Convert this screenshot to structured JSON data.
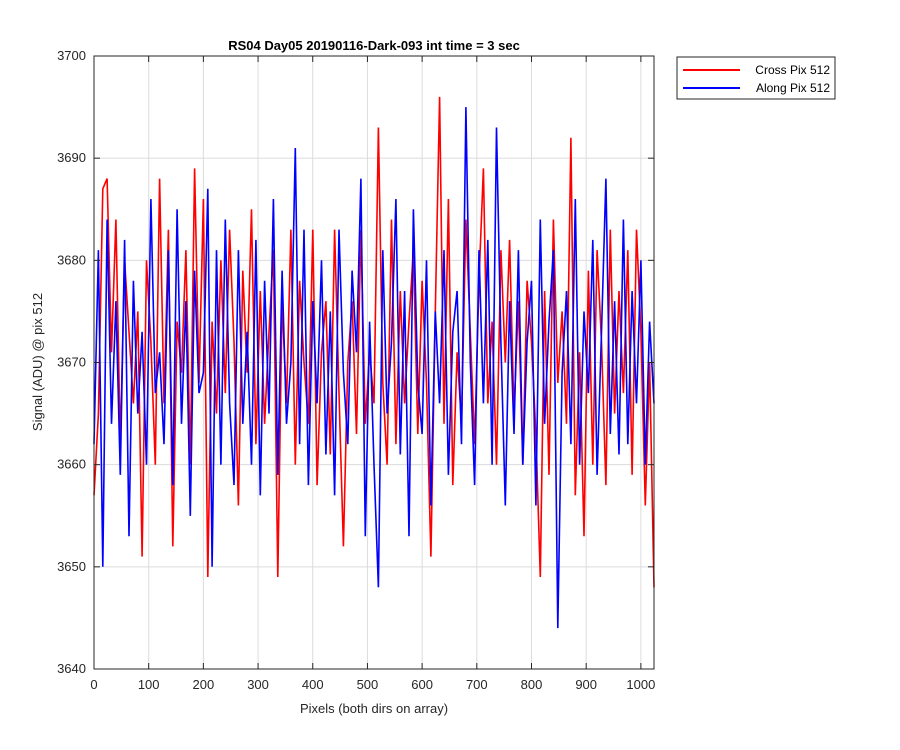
{
  "chart_data": {
    "type": "line",
    "title": "RS04 Day05 20190116-Dark-093 int time = 3 sec",
    "xlabel": "Pixels (both dirs on array)",
    "ylabel": "Signal (ADU) @ pix 512",
    "xlim": [
      0,
      1024
    ],
    "ylim": [
      3640,
      3700
    ],
    "xticks": [
      0,
      100,
      200,
      300,
      400,
      500,
      600,
      700,
      800,
      900,
      1000
    ],
    "yticks": [
      3640,
      3650,
      3660,
      3670,
      3680,
      3690,
      3700
    ],
    "grid": true,
    "legend_position": "outside-top-right",
    "series": [
      {
        "name": "Cross Pix 512",
        "color": "#ff0000",
        "x": [
          0,
          8,
          16,
          24,
          32,
          40,
          48,
          56,
          64,
          72,
          80,
          88,
          96,
          104,
          112,
          120,
          128,
          136,
          144,
          152,
          160,
          168,
          176,
          184,
          192,
          200,
          208,
          216,
          224,
          232,
          240,
          248,
          256,
          264,
          272,
          280,
          288,
          296,
          304,
          312,
          320,
          328,
          336,
          344,
          352,
          360,
          368,
          376,
          384,
          392,
          400,
          408,
          416,
          424,
          432,
          440,
          448,
          456,
          464,
          472,
          480,
          488,
          496,
          504,
          512,
          520,
          528,
          536,
          544,
          552,
          560,
          568,
          576,
          584,
          592,
          600,
          608,
          616,
          624,
          632,
          640,
          648,
          656,
          664,
          672,
          680,
          688,
          696,
          704,
          712,
          720,
          728,
          736,
          744,
          752,
          760,
          768,
          776,
          784,
          792,
          800,
          808,
          816,
          824,
          832,
          840,
          848,
          856,
          864,
          872,
          880,
          888,
          896,
          904,
          912,
          920,
          928,
          936,
          944,
          952,
          960,
          968,
          976,
          984,
          992,
          1000,
          1008,
          1016,
          1024
        ],
        "values": [
          3657,
          3665,
          3687,
          3688,
          3671,
          3684,
          3662,
          3680,
          3673,
          3666,
          3675,
          3651,
          3680,
          3672,
          3660,
          3688,
          3666,
          3683,
          3652,
          3674,
          3669,
          3681,
          3660,
          3689,
          3668,
          3686,
          3649,
          3674,
          3665,
          3680,
          3667,
          3683,
          3672,
          3656,
          3679,
          3669,
          3685,
          3662,
          3677,
          3664,
          3673,
          3681,
          3649,
          3676,
          3666,
          3683,
          3660,
          3678,
          3670,
          3664,
          3683,
          3658,
          3671,
          3676,
          3661,
          3683,
          3667,
          3652,
          3670,
          3676,
          3663,
          3683,
          3664,
          3671,
          3666,
          3693,
          3668,
          3660,
          3684,
          3662,
          3677,
          3666,
          3674,
          3681,
          3663,
          3678,
          3668,
          3651,
          3675,
          3696,
          3664,
          3686,
          3658,
          3671,
          3664,
          3684,
          3673,
          3662,
          3678,
          3689,
          3666,
          3674,
          3660,
          3681,
          3670,
          3682,
          3665,
          3676,
          3660,
          3678,
          3672,
          3663,
          3649,
          3677,
          3659,
          3684,
          3668,
          3675,
          3664,
          3692,
          3657,
          3671,
          3653,
          3679,
          3660,
          3681,
          3672,
          3658,
          3683,
          3665,
          3677,
          3667,
          3681,
          3659,
          3683,
          3673,
          3656,
          3670,
          3648
        ]
      },
      {
        "name": "Along Pix 512",
        "color": "#0000ff",
        "x": [
          0,
          8,
          16,
          24,
          32,
          40,
          48,
          56,
          64,
          72,
          80,
          88,
          96,
          104,
          112,
          120,
          128,
          136,
          144,
          152,
          160,
          168,
          176,
          184,
          192,
          200,
          208,
          216,
          224,
          232,
          240,
          248,
          256,
          264,
          272,
          280,
          288,
          296,
          304,
          312,
          320,
          328,
          336,
          344,
          352,
          360,
          368,
          376,
          384,
          392,
          400,
          408,
          416,
          424,
          432,
          440,
          448,
          456,
          464,
          472,
          480,
          488,
          496,
          504,
          512,
          520,
          528,
          536,
          544,
          552,
          560,
          568,
          576,
          584,
          592,
          600,
          608,
          616,
          624,
          632,
          640,
          648,
          656,
          664,
          672,
          680,
          688,
          696,
          704,
          712,
          720,
          728,
          736,
          744,
          752,
          760,
          768,
          776,
          784,
          792,
          800,
          808,
          816,
          824,
          832,
          840,
          848,
          856,
          864,
          872,
          880,
          888,
          896,
          904,
          912,
          920,
          928,
          936,
          944,
          952,
          960,
          968,
          976,
          984,
          992,
          1000,
          1008,
          1016,
          1024
        ],
        "values": [
          3662,
          3681,
          3650,
          3684,
          3664,
          3676,
          3659,
          3682,
          3653,
          3678,
          3665,
          3673,
          3660,
          3686,
          3667,
          3671,
          3662,
          3681,
          3658,
          3685,
          3664,
          3676,
          3655,
          3679,
          3667,
          3669,
          3687,
          3650,
          3681,
          3660,
          3684,
          3666,
          3658,
          3681,
          3664,
          3673,
          3660,
          3682,
          3657,
          3678,
          3665,
          3686,
          3659,
          3679,
          3664,
          3670,
          3691,
          3662,
          3683,
          3658,
          3676,
          3666,
          3680,
          3661,
          3675,
          3657,
          3683,
          3669,
          3662,
          3679,
          3671,
          3688,
          3653,
          3674,
          3660,
          3648,
          3681,
          3665,
          3672,
          3686,
          3661,
          3677,
          3653,
          3685,
          3668,
          3663,
          3680,
          3656,
          3675,
          3666,
          3681,
          3659,
          3673,
          3677,
          3662,
          3695,
          3670,
          3658,
          3681,
          3666,
          3682,
          3660,
          3693,
          3672,
          3656,
          3676,
          3663,
          3681,
          3660,
          3672,
          3678,
          3656,
          3684,
          3664,
          3674,
          3681,
          3644,
          3669,
          3677,
          3662,
          3686,
          3660,
          3675,
          3667,
          3682,
          3659,
          3673,
          3688,
          3663,
          3676,
          3661,
          3684,
          3662,
          3677,
          3666,
          3680,
          3660,
          3674,
          3666
        ]
      }
    ]
  }
}
